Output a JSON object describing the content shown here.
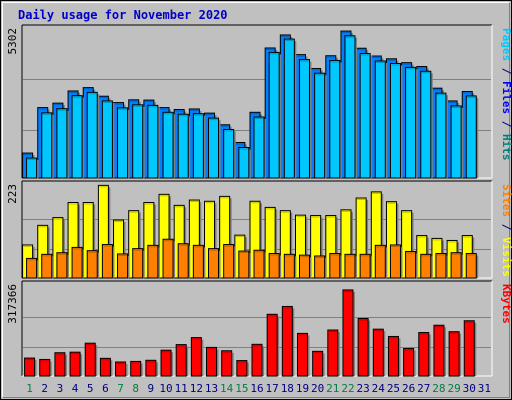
{
  "chart_data": {
    "type": "bar",
    "title": "Daily usage for November 2020",
    "categories": [
      "1",
      "2",
      "3",
      "4",
      "5",
      "6",
      "7",
      "8",
      "9",
      "10",
      "11",
      "12",
      "13",
      "14",
      "15",
      "16",
      "17",
      "18",
      "19",
      "20",
      "21",
      "22",
      "23",
      "24",
      "25",
      "26",
      "27",
      "28",
      "29",
      "30",
      "31"
    ],
    "weekend_days": [
      "1",
      "7",
      "8",
      "14",
      "15",
      "21",
      "22",
      "28",
      "29"
    ],
    "panels": [
      {
        "id": "pages-files",
        "max_label": "5302",
        "max_value": 5302,
        "right_label_parts": [
          {
            "text": "Pages",
            "color": "#00c8ff"
          },
          {
            "text": " / ",
            "color": "#000080"
          },
          {
            "text": "Files",
            "color": "#0000ff"
          },
          {
            "text": " / ",
            "color": "#000080"
          },
          {
            "text": "Hits",
            "color": "#008080"
          }
        ],
        "series": [
          {
            "name": "Files",
            "color": "#0080ff",
            "values": [
              900,
              2540,
              2700,
              3140,
              3260,
              2950,
              2720,
              2820,
              2810,
              2540,
              2470,
              2490,
              2340,
              1920,
              1280,
              2370,
              4690,
              5160,
              4450,
              3950,
              4410,
              5300,
              4680,
              4400,
              4300,
              4160,
              4020,
              3240,
              2780,
              3120,
              null
            ]
          },
          {
            "name": "Pages",
            "color": "#00c8ff",
            "values": [
              720,
              2350,
              2500,
              2970,
              3090,
              2780,
              2530,
              2640,
              2620,
              2370,
              2300,
              2320,
              2160,
              1750,
              1100,
              2200,
              4530,
              5010,
              4270,
              3780,
              4240,
              5130,
              4490,
              4220,
              4130,
              3990,
              3850,
              3060,
              2600,
              2960,
              null
            ]
          }
        ]
      },
      {
        "id": "visits-sites",
        "max_label": "223",
        "max_value": 223,
        "right_label_parts": [
          {
            "text": "Sites",
            "color": "#ff8000"
          },
          {
            "text": " / ",
            "color": "#000080"
          },
          {
            "text": "Visits",
            "color": "#ffff00"
          }
        ],
        "series": [
          {
            "name": "Visits",
            "color": "#ffff00",
            "values": [
              81,
              129,
              148,
              185,
              185,
              227,
              142,
              165,
              185,
              205,
              178,
              191,
              188,
              200,
              105,
              188,
              173,
              165,
              154,
              153,
              153,
              167,
              196,
              211,
              187,
              165,
              104,
              97,
              92,
              104,
              null
            ]
          },
          {
            "name": "Sites",
            "color": "#ff8000",
            "values": [
              48,
              58,
              62,
              75,
              67,
              82,
              59,
              72,
              80,
              95,
              84,
              80,
              72,
              82,
              66,
              68,
              60,
              58,
              56,
              54,
              60,
              58,
              58,
              80,
              81,
              65,
              58,
              60,
              62,
              60,
              null
            ]
          }
        ]
      },
      {
        "id": "kbytes",
        "max_label": "317366",
        "max_value": 317366,
        "right_label_parts": [
          {
            "text": "KBytes",
            "color": "#ff0000"
          }
        ],
        "series": [
          {
            "name": "KBytes",
            "color": "#ff0000",
            "values": [
              64000,
              59000,
              83000,
              85000,
              117000,
              63000,
              50000,
              52000,
              56000,
              92000,
              112000,
              137000,
              102000,
              90000,
              55000,
              113000,
              220000,
              248000,
              152000,
              88000,
              164000,
              307000,
              205000,
              167000,
              141000,
              98000,
              155000,
              181000,
              158000,
              197000,
              null
            ]
          }
        ]
      }
    ]
  }
}
